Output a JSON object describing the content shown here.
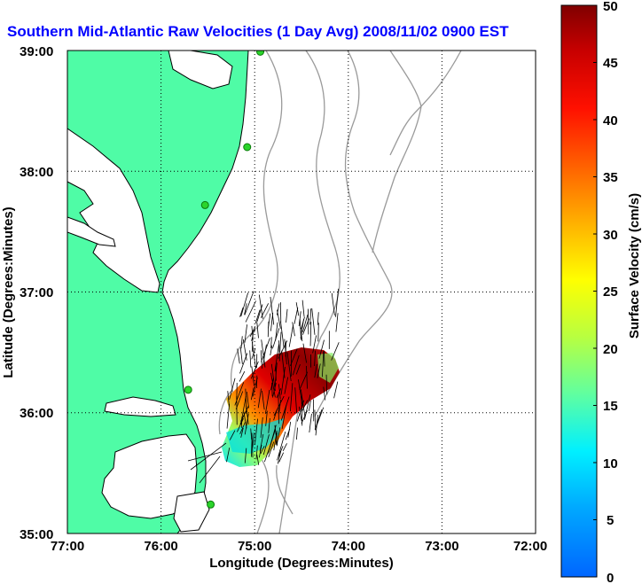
{
  "title": "Southern Mid-Atlantic Raw Velocities (1 Day Avg) 2008/11/02 0900 EST",
  "xlabel": "Longitude (Degrees:Minutes)",
  "ylabel": "Latitude (Degrees:Minutes)",
  "x_ticks": [
    "77:00",
    "76:00",
    "75:00",
    "74:00",
    "73:00",
    "72:00"
  ],
  "y_ticks": [
    "39:00",
    "38:00",
    "37:00",
    "36:00",
    "35:00"
  ],
  "colorbar": {
    "label": "Surface Velocity (cm/s)",
    "ticks": [
      "0",
      "5",
      "10",
      "15",
      "20",
      "25",
      "30",
      "35",
      "40",
      "45",
      "50"
    ],
    "min": 0,
    "max": 50
  },
  "colors": {
    "land": "#4ffca6",
    "bathymetry": "#9a9a9a",
    "station": "#2bd42b",
    "title": "#0000ff"
  },
  "chart_data": {
    "type": "map",
    "lon_range": [
      -77,
      -72
    ],
    "lat_range": [
      35,
      39
    ],
    "grid": true,
    "stations": [
      {
        "lon": -74.94,
        "lat": 38.99
      },
      {
        "lon": -75.08,
        "lat": 38.2
      },
      {
        "lon": -75.53,
        "lat": 37.72
      },
      {
        "lon": -75.71,
        "lat": 36.19
      },
      {
        "lon": -75.47,
        "lat": 35.24
      }
    ]
  }
}
